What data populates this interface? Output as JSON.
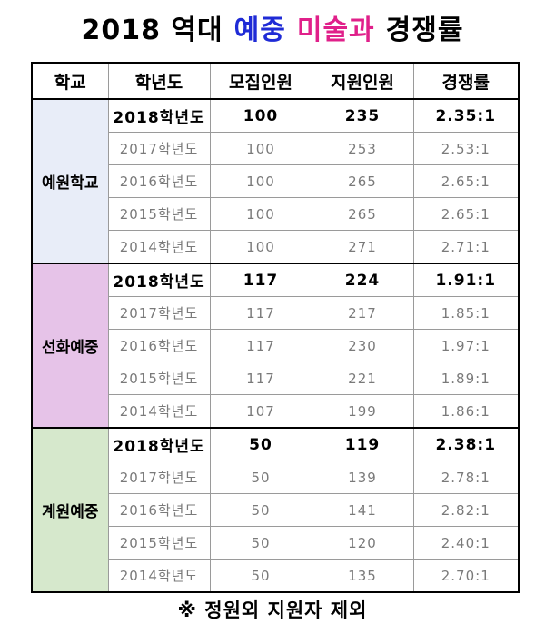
{
  "title": {
    "part1": "2018 역대",
    "part2": "예중",
    "part3": "미술과",
    "part4": "경쟁률",
    "color_part2": "#1f2bd6",
    "color_part3": "#e0208a"
  },
  "headers": [
    "학교",
    "학년도",
    "모집인원",
    "지원인원",
    "경쟁률"
  ],
  "schools": [
    {
      "name": "예원학교",
      "bg": "#e8edf8",
      "rows": [
        [
          "2018학년도",
          "100",
          "235",
          "2.35:1"
        ],
        [
          "2017학년도",
          "100",
          "253",
          "2.53:1"
        ],
        [
          "2016학년도",
          "100",
          "265",
          "2.65:1"
        ],
        [
          "2015학년도",
          "100",
          "265",
          "2.65:1"
        ],
        [
          "2014학년도",
          "100",
          "271",
          "2.71:1"
        ]
      ]
    },
    {
      "name": "선화예중",
      "bg": "#e6c3e8",
      "rows": [
        [
          "2018학년도",
          "117",
          "224",
          "1.91:1"
        ],
        [
          "2017학년도",
          "117",
          "217",
          "1.85:1"
        ],
        [
          "2016학년도",
          "117",
          "230",
          "1.97:1"
        ],
        [
          "2015학년도",
          "117",
          "221",
          "1.89:1"
        ],
        [
          "2014학년도",
          "107",
          "199",
          "1.86:1"
        ]
      ]
    },
    {
      "name": "계원예중",
      "bg": "#d6e8cc",
      "rows": [
        [
          "2018학년도",
          "50",
          "119",
          "2.38:1"
        ],
        [
          "2017학년도",
          "50",
          "139",
          "2.78:1"
        ],
        [
          "2016학년도",
          "50",
          "141",
          "2.82:1"
        ],
        [
          "2015학년도",
          "50",
          "120",
          "2.40:1"
        ],
        [
          "2014학년도",
          "50",
          "135",
          "2.70:1"
        ]
      ]
    }
  ],
  "footer": "※ 정원외 지원자 제외"
}
